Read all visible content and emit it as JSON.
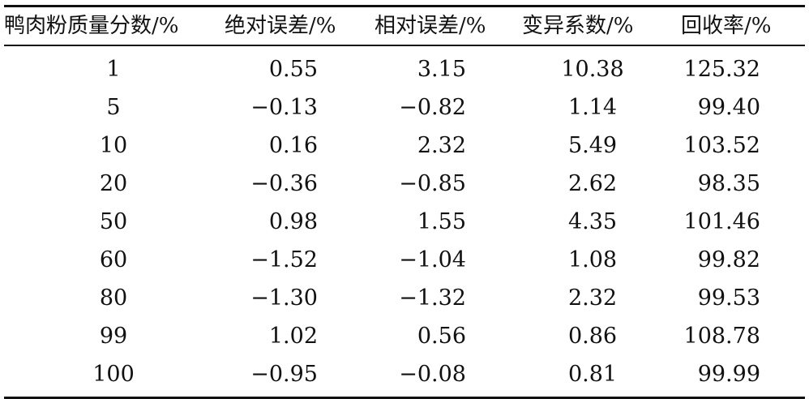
{
  "chart_data": {
    "type": "table",
    "columns": [
      "鸭肉粉质量分数/%",
      "绝对误差/%",
      "相对误差/%",
      "变异系数/%",
      "回收率/%"
    ],
    "rows": [
      [
        "1",
        "0.55",
        "3.15",
        "10.38",
        "125.32"
      ],
      [
        "5",
        "−0.13",
        "−0.82",
        "1.14",
        "99.40"
      ],
      [
        "10",
        "0.16",
        "2.32",
        "5.49",
        "103.52"
      ],
      [
        "20",
        "−0.36",
        "−0.85",
        "2.62",
        "98.35"
      ],
      [
        "50",
        "0.98",
        "1.55",
        "4.35",
        "101.46"
      ],
      [
        "60",
        "−1.52",
        "−1.04",
        "1.08",
        "99.82"
      ],
      [
        "80",
        "−1.30",
        "−1.32",
        "2.32",
        "99.53"
      ],
      [
        "99",
        "1.02",
        "0.56",
        "0.86",
        "108.78"
      ],
      [
        "100",
        "−0.95",
        "−0.08",
        "0.81",
        "99.99"
      ]
    ]
  }
}
